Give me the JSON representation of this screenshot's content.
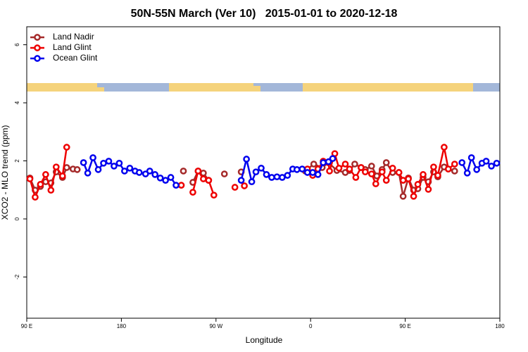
{
  "chart_data": {
    "type": "line",
    "title": "50N-55N March (Ver 10)   2015-01-01 to 2020-12-18",
    "x_label": "Longitude",
    "y_label": "XCO2 - MLO trend (ppm)",
    "xlim": [
      90,
      540
    ],
    "xticks": [
      {
        "value": 90,
        "label": "90 E"
      },
      180,
      {
        "value": 270,
        "label": "90 W"
      },
      {
        "value": 360,
        "label": "0"
      },
      {
        "value": 450,
        "label": "90 E"
      },
      {
        "value": 540,
        "label": "180"
      }
    ],
    "ylim": [
      -3.42,
      6.62
    ],
    "yticks": [
      -2,
      0,
      2,
      4,
      6
    ],
    "legend": "top-left",
    "series": [
      {
        "name": "Land Nadir",
        "color": "#a52a2a",
        "x": [
          93,
          98,
          103,
          108,
          113,
          118,
          124,
          128,
          134,
          138,
          null,
          239,
          null,
          248,
          253,
          258,
          263,
          null,
          278,
          null,
          294,
          null,
          355,
          363,
          371,
          377,
          385,
          393,
          397,
          402,
          408,
          412,
          418,
          423,
          428,
          432,
          438,
          444,
          448,
          453,
          458,
          462,
          467,
          472,
          477,
          481,
          487,
          491,
          497
        ],
        "values": [
          1.41,
          0.99,
          1.12,
          1.28,
          1.24,
          1.62,
          1.43,
          1.77,
          1.72,
          1.7,
          null,
          1.65,
          null,
          1.26,
          1.65,
          1.58,
          1.33,
          null,
          1.55,
          null,
          1.62,
          null,
          1.65,
          1.89,
          1.77,
          1.94,
          1.67,
          1.6,
          1.67,
          1.89,
          1.77,
          1.7,
          1.82,
          1.48,
          1.7,
          1.94,
          1.6,
          1.6,
          0.78,
          1.41,
          0.99,
          1.04,
          1.43,
          1.28,
          1.62,
          1.45,
          1.79,
          1.72,
          1.65
        ]
      },
      {
        "name": "Land Glint",
        "color": "#ee0000",
        "x": [
          93,
          98,
          103,
          108,
          113,
          118,
          124,
          128,
          null,
          237,
          null,
          248,
          253,
          258,
          263,
          268,
          null,
          288,
          null,
          297,
          null,
          357,
          362,
          367,
          372,
          377,
          378,
          383,
          387,
          393,
          397,
          403,
          408,
          412,
          418,
          422,
          428,
          432,
          438,
          null,
          444,
          448,
          453,
          458,
          462,
          467,
          472,
          477,
          481,
          487,
          491,
          497
        ],
        "values": [
          1.38,
          0.75,
          1.19,
          1.53,
          0.99,
          1.79,
          1.48,
          2.47,
          null,
          1.16,
          null,
          0.92,
          1.65,
          1.38,
          1.33,
          0.82,
          null,
          1.09,
          null,
          1.14,
          null,
          1.72,
          1.5,
          1.72,
          1.99,
          1.94,
          1.65,
          2.25,
          1.75,
          1.89,
          1.72,
          1.43,
          1.77,
          1.62,
          1.55,
          1.21,
          1.62,
          1.33,
          1.75,
          null,
          1.6,
          1.33,
          1.38,
          0.78,
          1.19,
          1.53,
          1.02,
          1.79,
          1.5,
          2.47,
          1.72,
          1.89
        ]
      },
      {
        "name": "Ocean Glint",
        "color": "#0000ee",
        "x": [
          144,
          148,
          153,
          158,
          163,
          168,
          173,
          178,
          183,
          188,
          193,
          197,
          203,
          207,
          212,
          217,
          222,
          227,
          232,
          null,
          294,
          299,
          304,
          308,
          313,
          318,
          323,
          328,
          333,
          338,
          343,
          347,
          352,
          357,
          362,
          367,
          372,
          377,
          381,
          null,
          504,
          509,
          513,
          518,
          523,
          527,
          532,
          537
        ],
        "values": [
          1.94,
          1.58,
          2.11,
          1.7,
          1.92,
          1.99,
          1.82,
          1.92,
          1.65,
          1.75,
          1.65,
          1.6,
          1.55,
          1.65,
          1.53,
          1.41,
          1.33,
          1.43,
          1.16,
          null,
          1.33,
          2.06,
          1.28,
          1.62,
          1.75,
          1.53,
          1.43,
          1.45,
          1.43,
          1.5,
          1.72,
          1.7,
          1.72,
          1.6,
          1.6,
          1.53,
          1.94,
          1.97,
          2.08,
          null,
          1.94,
          1.58,
          2.11,
          1.7,
          1.92,
          1.99,
          1.82,
          1.92
        ]
      }
    ]
  }
}
